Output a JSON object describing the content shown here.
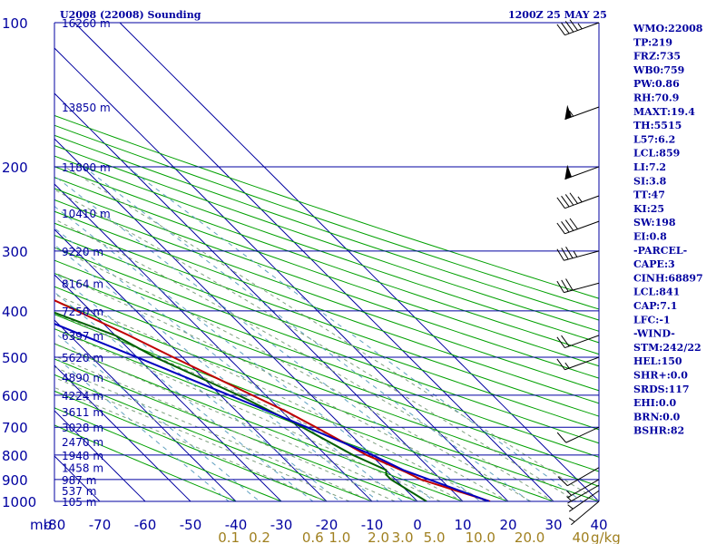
{
  "chart_data": {
    "type": "line",
    "title": "U2008 (22008) Sounding",
    "valid_time": "1200Z 25 MAY 25",
    "x_axis": {
      "unit_label": "mb",
      "ticks": [
        -80,
        -70,
        -60,
        -50,
        -40,
        -30,
        -20,
        -10,
        0,
        10,
        20,
        30,
        40
      ],
      "xlim": [
        -80,
        40
      ]
    },
    "y_axis": {
      "scale": "log",
      "ticks": [
        100,
        200,
        300,
        400,
        500,
        600,
        700,
        800,
        900,
        1000
      ],
      "ylim": [
        1000,
        100
      ]
    },
    "mixing_ratio_axis": {
      "unit_label": "g/kg",
      "labels": [
        "0.1",
        "0.2",
        "0.6",
        "1.0",
        "2.0",
        "3.0",
        "5.0",
        "10.0",
        "20.0",
        "40"
      ],
      "values": [
        0.1,
        0.2,
        0.6,
        1.0,
        2.0,
        3.0,
        5.0,
        10.0,
        20.0,
        40.0
      ]
    },
    "heights": [
      {
        "p": 100,
        "label": "16260 m"
      },
      {
        "p": 150,
        "label": "13850 m"
      },
      {
        "p": 200,
        "label": "11800 m"
      },
      {
        "p": 250,
        "label": "10410 m"
      },
      {
        "p": 300,
        "label": "9220 m"
      },
      {
        "p": 350,
        "label": "8164 m"
      },
      {
        "p": 400,
        "label": "7250 m"
      },
      {
        "p": 450,
        "label": "6397 m"
      },
      {
        "p": 500,
        "label": "5620 m"
      },
      {
        "p": 550,
        "label": "4890 m"
      },
      {
        "p": 600,
        "label": "4224 m"
      },
      {
        "p": 650,
        "label": "3611 m"
      },
      {
        "p": 700,
        "label": "3028 m"
      },
      {
        "p": 750,
        "label": "2470 m"
      },
      {
        "p": 800,
        "label": "1948 m"
      },
      {
        "p": 850,
        "label": "1458 m"
      },
      {
        "p": 900,
        "label": "987 m"
      },
      {
        "p": 950,
        "label": "537 m"
      },
      {
        "p": 1000,
        "label": "105 m"
      }
    ],
    "series": [
      {
        "color": "#c00000",
        "points": [
          {
            "p": 1000,
            "t": 16
          },
          {
            "p": 900,
            "t": 5.6
          },
          {
            "p": 870,
            "t": 4
          },
          {
            "p": 800,
            "t": -1
          },
          {
            "p": 700,
            "t": -6
          },
          {
            "p": 650,
            "t": -9
          },
          {
            "p": 600,
            "t": -13
          },
          {
            "p": 500,
            "t": -22
          },
          {
            "p": 450,
            "t": -27
          },
          {
            "p": 400,
            "t": -33
          },
          {
            "p": 350,
            "t": -40
          },
          {
            "p": 300,
            "t": -46
          },
          {
            "p": 270,
            "t": -50
          },
          {
            "p": 250,
            "t": -56
          },
          {
            "p": 230,
            "t": -60
          },
          {
            "p": 220,
            "t": -64
          },
          {
            "p": 210,
            "t": -62
          },
          {
            "p": 200,
            "t": -59
          },
          {
            "p": 180,
            "t": -54
          },
          {
            "p": 160,
            "t": -55
          },
          {
            "p": 140,
            "t": -55
          },
          {
            "p": 120,
            "t": -55
          },
          {
            "p": 110,
            "t": -54
          },
          {
            "p": 100,
            "t": -51
          }
        ]
      },
      {
        "color": "#006000",
        "points": [
          {
            "p": 1000,
            "t": 2
          },
          {
            "p": 900,
            "t": -1
          },
          {
            "p": 880,
            "t": -1
          },
          {
            "p": 860,
            "t": 0
          },
          {
            "p": 800,
            "t": -4
          },
          {
            "p": 700,
            "t": -9
          },
          {
            "p": 600,
            "t": -16
          },
          {
            "p": 500,
            "t": -26
          },
          {
            "p": 450,
            "t": -30
          },
          {
            "p": 400,
            "t": -39
          },
          {
            "p": 350,
            "t": -47
          },
          {
            "p": 300,
            "t": -56
          },
          {
            "p": 270,
            "t": -62
          },
          {
            "p": 250,
            "t": -66
          },
          {
            "p": 230,
            "t": -70
          },
          {
            "p": 220,
            "t": -71
          },
          {
            "p": 200,
            "t": -72
          },
          {
            "p": 180,
            "t": -68
          },
          {
            "p": 160,
            "t": -68
          },
          {
            "p": 140,
            "t": -70
          },
          {
            "p": 120,
            "t": -72
          },
          {
            "p": 100,
            "t": -73
          }
        ]
      },
      {
        "color": "#0000c0",
        "points": [
          {
            "p": 1000,
            "t": 15.8
          },
          {
            "p": 860,
            "t": 3.8
          },
          {
            "p": 800,
            "t": 0.3
          },
          {
            "p": 700,
            "t": -8
          },
          {
            "p": 600,
            "t": -18
          },
          {
            "p": 500,
            "t": -30
          },
          {
            "p": 400,
            "t": -45
          },
          {
            "p": 300,
            "t": -64
          },
          {
            "p": 250,
            "t": -75
          },
          {
            "p": 200,
            "t": -88
          }
        ]
      }
    ],
    "wind_barbs": [
      {
        "p": 100,
        "dir": 250,
        "spd": 45
      },
      {
        "p": 150,
        "dir": 250,
        "spd": 55
      },
      {
        "p": 200,
        "dir": 250,
        "spd": 50
      },
      {
        "p": 230,
        "dir": 250,
        "spd": 45
      },
      {
        "p": 260,
        "dir": 250,
        "spd": 40
      },
      {
        "p": 300,
        "dir": 255,
        "spd": 35
      },
      {
        "p": 350,
        "dir": 255,
        "spd": 30
      },
      {
        "p": 450,
        "dir": 250,
        "spd": 20
      },
      {
        "p": 500,
        "dir": 250,
        "spd": 15
      },
      {
        "p": 700,
        "dir": 245,
        "spd": 10
      },
      {
        "p": 850,
        "dir": 240,
        "spd": 10
      },
      {
        "p": 900,
        "dir": 240,
        "spd": 5
      },
      {
        "p": 925,
        "dir": 240,
        "spd": 5
      },
      {
        "p": 950,
        "dir": 235,
        "spd": 5
      },
      {
        "p": 1000,
        "dir": 230,
        "spd": 5
      }
    ],
    "grid": true
  },
  "indices": [
    "WMO:22008",
    "TP:219",
    "FRZ:735",
    "WB0:759",
    "PW:0.86",
    "RH:70.9",
    "MAXT:19.4",
    "TH:5515",
    "L57:6.2",
    "LCL:859",
    "LI:7.2",
    "SI:3.8",
    "TT:47",
    "KI:25",
    "SW:198",
    "EI:0.8",
    "-PARCEL-",
    "CAPE:3",
    "CINH:68897",
    "LCL:841",
    "CAP:7.1",
    "LFC:-1",
    "-WIND-",
    "STM:242/22",
    "HEL:150",
    "SHR+:0.0",
    "SRDS:117",
    "EHI:0.0",
    "BRN:0.0",
    "BSHR:82"
  ],
  "colors": {
    "isobar": "#0000a0",
    "isotherm": "#0000a0",
    "dry_adiabat": "#00a000",
    "moist_adiabat": "#80a080",
    "mixing_ratio": "#60a0c0",
    "temperature": "#c00000",
    "dewpoint": "#006000",
    "parcel": "#0000c0",
    "text": "#0000a0"
  }
}
